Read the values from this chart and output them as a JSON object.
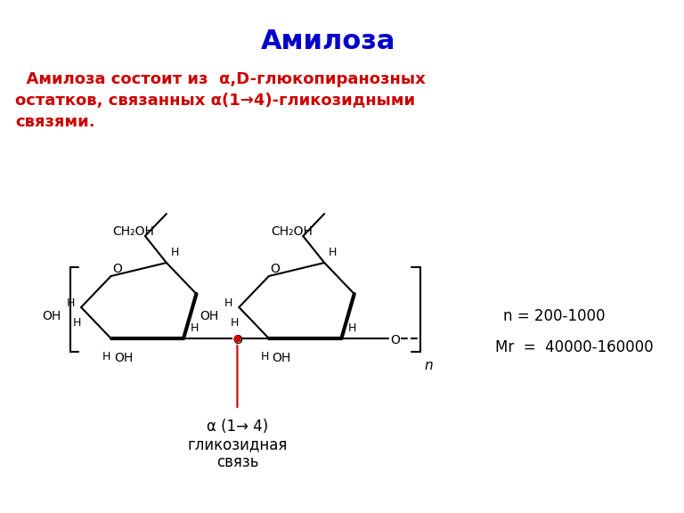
{
  "title": "Амилоза",
  "title_color": "#0000CC",
  "title_fontsize": 22,
  "body_text_line1": "  Амилоза состоит из  α,D-глюкопиранозных",
  "body_text_line2": "остатков, связанных α(1→4)-гликозидными",
  "body_text_line3": "связями.",
  "body_color_italic": "#CC0000",
  "body_color_normal": "#000000",
  "label_alpha14": "α (1→ 4)",
  "label_glikoz1": "гликозидная",
  "label_glikoz2": "связь",
  "label_n": "n = 200-1000",
  "label_Mr": "Mr  =  40000-160000",
  "bg_color": "#FFFFFF"
}
